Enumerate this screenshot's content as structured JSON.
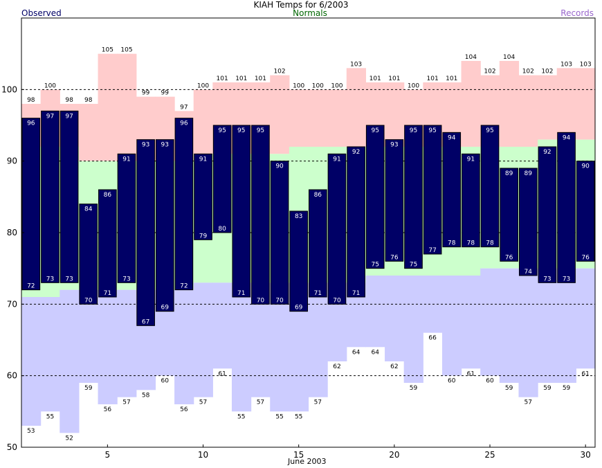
{
  "header": {
    "title": "KIAH Temps for 6/2003",
    "observed_label": "Observed",
    "normals_label": "Normals",
    "records_label": "Records"
  },
  "colors": {
    "observed": "#000066",
    "record_high": "#ffcccc",
    "normal": "#ccffcc",
    "record_low": "#ccccff",
    "grid": "#000000"
  },
  "chart_data": {
    "type": "bar",
    "title": "KIAH Temps for 6/2003",
    "xlabel": "June 2003",
    "ylabel": "",
    "ylim": [
      50,
      110
    ],
    "yticks": [
      50,
      60,
      70,
      80,
      90,
      100
    ],
    "xticks": [
      5,
      10,
      15,
      20,
      25,
      30
    ],
    "grid": "dashed horizontal at 60, 70, 80, 90, 100",
    "days": [
      1,
      2,
      3,
      4,
      5,
      6,
      7,
      8,
      9,
      10,
      11,
      12,
      13,
      14,
      15,
      16,
      17,
      18,
      19,
      20,
      21,
      22,
      23,
      24,
      25,
      26,
      27,
      28,
      29,
      30
    ],
    "observed_high": [
      96,
      97,
      97,
      84,
      86,
      91,
      93,
      93,
      96,
      91,
      95,
      95,
      95,
      90,
      83,
      86,
      91,
      92,
      95,
      93,
      95,
      95,
      94,
      91,
      95,
      89,
      89,
      92,
      94,
      90
    ],
    "observed_low": [
      72,
      73,
      73,
      70,
      71,
      73,
      67,
      69,
      72,
      79,
      80,
      71,
      70,
      70,
      69,
      71,
      70,
      71,
      75,
      76,
      75,
      77,
      78,
      78,
      78,
      76,
      74,
      73,
      73,
      76
    ],
    "normal_high": [
      92,
      92,
      92,
      90,
      90,
      90,
      90,
      90,
      90,
      91,
      91,
      91,
      91,
      91,
      92,
      92,
      92,
      92,
      92,
      92,
      92,
      92,
      92,
      92,
      92,
      92,
      92,
      93,
      93,
      93
    ],
    "normal_low": [
      71,
      71,
      72,
      72,
      72,
      72,
      72,
      72,
      72,
      73,
      73,
      73,
      73,
      73,
      73,
      73,
      73,
      73,
      74,
      74,
      74,
      74,
      74,
      74,
      75,
      75,
      75,
      75,
      75,
      75
    ],
    "record_high": [
      98,
      100,
      98,
      98,
      105,
      105,
      99,
      99,
      97,
      100,
      101,
      101,
      101,
      102,
      100,
      100,
      100,
      103,
      101,
      101,
      100,
      101,
      101,
      104,
      102,
      104,
      102,
      102,
      103,
      103
    ],
    "record_low": [
      53,
      55,
      52,
      59,
      56,
      57,
      58,
      60,
      56,
      57,
      61,
      55,
      57,
      55,
      55,
      57,
      62,
      64,
      64,
      62,
      59,
      66,
      60,
      61,
      60,
      59,
      57,
      59,
      59,
      61
    ]
  }
}
